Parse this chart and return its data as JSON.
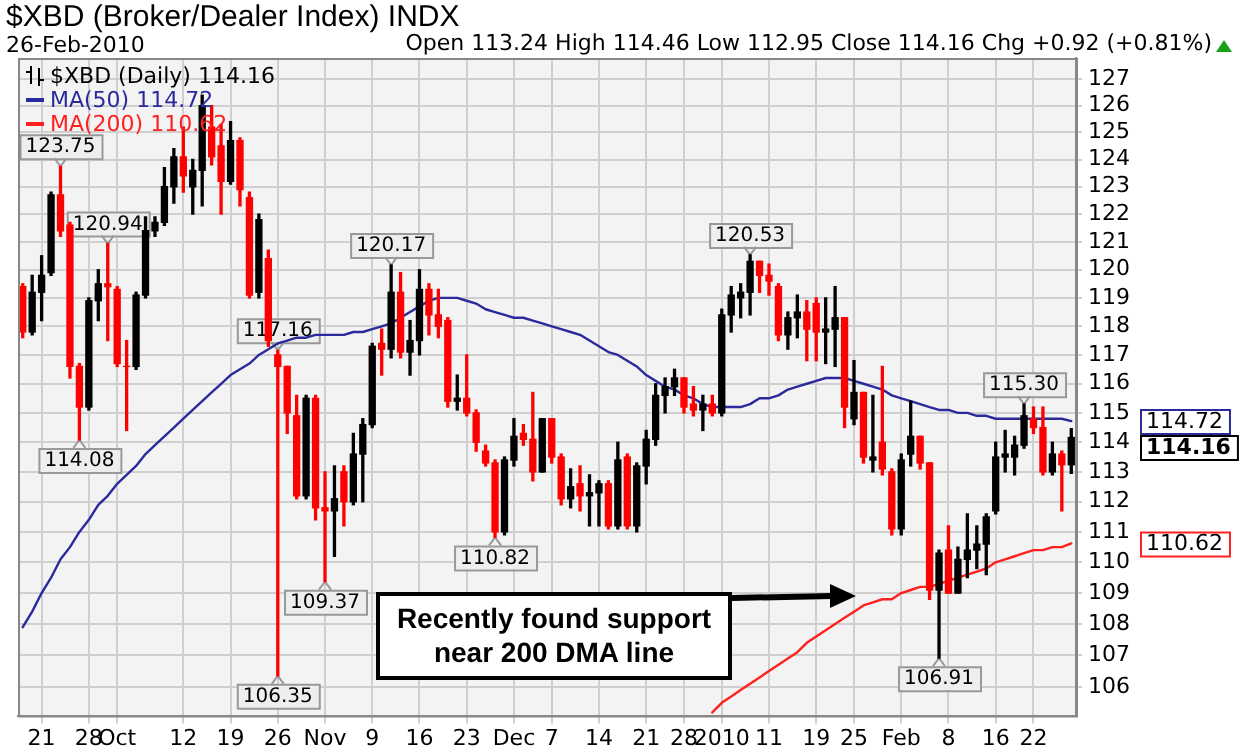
{
  "chart_data": {
    "type": "candlestick",
    "title": "$XBD (Broker/Dealer Index) INDX",
    "subtitle": "26-Feb-2010",
    "categories": [
      null,
      null,
      "21",
      null,
      null,
      null,
      null,
      "28",
      null,
      null,
      "Oct",
      null,
      null,
      null,
      null,
      null,
      null,
      "12",
      null,
      null,
      null,
      null,
      "19",
      null,
      null,
      null,
      null,
      "26",
      null,
      null,
      null,
      null,
      "Nov",
      null,
      null,
      null,
      null,
      "9",
      null,
      null,
      null,
      null,
      "16",
      null,
      null,
      null,
      null,
      "23",
      null,
      null,
      null,
      null,
      "Dec",
      null,
      null,
      null,
      "7",
      null,
      null,
      null,
      null,
      "14",
      null,
      null,
      null,
      null,
      "21",
      null,
      null,
      null,
      "28",
      null,
      null,
      null,
      "2010",
      null,
      null,
      null,
      null,
      "11",
      null,
      null,
      null,
      null,
      "19",
      null,
      null,
      null,
      "25",
      null,
      null,
      null,
      null,
      "Feb",
      null,
      null,
      null,
      null,
      "8",
      null,
      null,
      null,
      null,
      "16",
      null,
      null,
      null,
      "22",
      null,
      null,
      null,
      null
    ],
    "series": [
      {
        "name": "$XBD (Daily) 114.16",
        "ohlc": [
          [
            119.4,
            119.5,
            117.6,
            117.8
          ],
          [
            117.8,
            119.8,
            117.7,
            119.2
          ],
          [
            119.2,
            120.5,
            118.2,
            119.8
          ],
          [
            119.9,
            122.8,
            119.8,
            122.7
          ],
          [
            122.7,
            123.75,
            121.2,
            121.4
          ],
          [
            121.6,
            121.7,
            116.2,
            116.6
          ],
          [
            116.6,
            116.7,
            114.08,
            115.2
          ],
          [
            115.2,
            119.0,
            115.1,
            118.9
          ],
          [
            118.9,
            120.0,
            118.2,
            119.5
          ],
          [
            119.5,
            120.94,
            117.5,
            119.4
          ],
          [
            119.3,
            119.4,
            116.6,
            116.7
          ],
          [
            116.6,
            117.5,
            114.4,
            116.6
          ],
          [
            116.6,
            119.2,
            116.5,
            119.1
          ],
          [
            119.1,
            121.9,
            119.0,
            121.4
          ],
          [
            121.4,
            121.9,
            121.2,
            121.7
          ],
          [
            121.7,
            123.7,
            121.6,
            123.0
          ],
          [
            123.0,
            124.4,
            122.4,
            124.1
          ],
          [
            124.1,
            125.2,
            122.8,
            123.4
          ],
          [
            123.0,
            124.0,
            122.0,
            123.6
          ],
          [
            123.6,
            126.4,
            122.3,
            126.0
          ],
          [
            125.2,
            126.0,
            123.8,
            124.1
          ],
          [
            124.5,
            125.3,
            122.0,
            123.2
          ],
          [
            123.2,
            125.4,
            123.1,
            124.7
          ],
          [
            124.7,
            124.8,
            122.3,
            122.9
          ],
          [
            122.6,
            122.8,
            119.0,
            119.1
          ],
          [
            119.2,
            122.0,
            119.0,
            121.8
          ],
          [
            120.4,
            120.7,
            117.3,
            117.5
          ],
          [
            117.0,
            117.16,
            106.35,
            116.6
          ],
          [
            116.6,
            116.6,
            114.3,
            115.0
          ],
          [
            114.9,
            115.6,
            112.1,
            112.2
          ],
          [
            112.2,
            115.6,
            112.1,
            115.5
          ],
          [
            115.5,
            115.6,
            111.4,
            111.8
          ],
          [
            111.8,
            113.0,
            109.37,
            111.7
          ],
          [
            111.7,
            113.2,
            110.2,
            112.1
          ],
          [
            113.0,
            113.2,
            111.2,
            112.0
          ],
          [
            112.0,
            114.3,
            111.9,
            113.6
          ],
          [
            113.6,
            114.8,
            112.0,
            114.6
          ],
          [
            114.6,
            117.4,
            114.5,
            117.3
          ],
          [
            117.4,
            117.9,
            116.3,
            117.2
          ],
          [
            117.2,
            120.17,
            116.9,
            119.2
          ],
          [
            119.2,
            119.9,
            116.9,
            117.1
          ],
          [
            117.1,
            118.2,
            116.3,
            117.5
          ],
          [
            117.5,
            120.0,
            117.0,
            119.3
          ],
          [
            119.3,
            119.5,
            117.7,
            118.4
          ],
          [
            118.4,
            119.3,
            117.6,
            118.0
          ],
          [
            118.2,
            118.3,
            115.2,
            115.4
          ],
          [
            115.4,
            116.3,
            115.1,
            115.5
          ],
          [
            115.5,
            117.0,
            114.9,
            115.0
          ],
          [
            115.0,
            115.1,
            113.7,
            114.0
          ],
          [
            113.7,
            113.9,
            113.2,
            113.3
          ],
          [
            113.3,
            113.4,
            110.82,
            111.0
          ],
          [
            111.0,
            113.5,
            110.9,
            113.4
          ],
          [
            113.4,
            114.8,
            113.2,
            114.2
          ],
          [
            114.3,
            114.6,
            113.9,
            114.1
          ],
          [
            114.1,
            115.7,
            112.7,
            113.0
          ],
          [
            113.0,
            114.8,
            113.0,
            114.8
          ],
          [
            114.8,
            114.8,
            113.3,
            113.5
          ],
          [
            113.5,
            113.6,
            111.9,
            112.1
          ],
          [
            112.1,
            113.1,
            111.8,
            112.5
          ],
          [
            112.6,
            113.2,
            111.7,
            112.2
          ],
          [
            112.2,
            112.9,
            111.2,
            112.3
          ],
          [
            112.3,
            112.7,
            111.2,
            112.6
          ],
          [
            112.6,
            112.7,
            111.1,
            111.2
          ],
          [
            111.2,
            114.0,
            111.1,
            113.4
          ],
          [
            113.5,
            113.6,
            111.1,
            111.2
          ],
          [
            111.2,
            113.3,
            111.0,
            113.2
          ],
          [
            113.2,
            114.4,
            112.6,
            114.1
          ],
          [
            114.1,
            116.0,
            113.9,
            115.6
          ],
          [
            115.6,
            116.2,
            115.0,
            115.9
          ],
          [
            115.9,
            116.5,
            115.6,
            116.2
          ],
          [
            116.2,
            116.2,
            115.0,
            115.2
          ],
          [
            115.3,
            115.9,
            114.9,
            115.1
          ],
          [
            115.1,
            115.6,
            114.4,
            115.3
          ],
          [
            115.3,
            115.6,
            114.9,
            115.0
          ],
          [
            115.0,
            118.6,
            114.9,
            118.4
          ],
          [
            118.4,
            119.4,
            117.8,
            119.1
          ],
          [
            119.0,
            119.5,
            118.3,
            119.2
          ],
          [
            119.2,
            120.53,
            118.4,
            120.3
          ],
          [
            120.3,
            120.3,
            119.2,
            119.8
          ],
          [
            119.8,
            120.2,
            119.1,
            119.6
          ],
          [
            119.4,
            119.5,
            117.5,
            117.7
          ],
          [
            117.7,
            118.5,
            117.2,
            118.3
          ],
          [
            118.3,
            119.1,
            117.6,
            118.5
          ],
          [
            118.5,
            118.9,
            116.8,
            117.9
          ],
          [
            118.8,
            119.0,
            116.8,
            117.8
          ],
          [
            117.8,
            119.0,
            116.7,
            117.9
          ],
          [
            117.9,
            119.4,
            116.6,
            118.3
          ],
          [
            118.3,
            118.3,
            114.5,
            115.2
          ],
          [
            114.8,
            116.8,
            114.6,
            115.7
          ],
          [
            115.7,
            115.7,
            113.3,
            113.5
          ],
          [
            113.4,
            115.6,
            113.0,
            113.5
          ],
          [
            114.0,
            116.6,
            112.9,
            113.1
          ],
          [
            113.0,
            113.1,
            110.9,
            111.1
          ],
          [
            111.1,
            113.6,
            110.9,
            113.4
          ],
          [
            113.6,
            115.4,
            113.2,
            114.2
          ],
          [
            114.2,
            114.2,
            113.1,
            113.3
          ],
          [
            113.3,
            113.3,
            108.8,
            109.1
          ],
          [
            109.1,
            110.4,
            106.91,
            110.3
          ],
          [
            110.4,
            111.2,
            109.0,
            109.0
          ],
          [
            109.0,
            110.5,
            109.0,
            110.1
          ],
          [
            110.1,
            111.6,
            109.5,
            110.4
          ],
          [
            110.4,
            111.2,
            109.8,
            110.6
          ],
          [
            110.6,
            111.6,
            109.6,
            111.5
          ],
          [
            111.7,
            114.0,
            111.6,
            113.5
          ],
          [
            113.5,
            114.4,
            113.0,
            113.6
          ],
          [
            113.5,
            114.2,
            112.9,
            113.9
          ],
          [
            113.9,
            115.3,
            113.8,
            114.9
          ],
          [
            114.8,
            115.2,
            114.3,
            114.5
          ],
          [
            114.5,
            115.2,
            112.9,
            113.0
          ],
          [
            113.0,
            114.0,
            112.9,
            113.6
          ],
          [
            113.6,
            113.7,
            111.7,
            113.24
          ],
          [
            113.24,
            114.46,
            112.95,
            114.16
          ]
        ],
        "colors": [
          "#ff0000",
          "#000000",
          "#000000",
          "#000000",
          "#ff0000",
          "#ff0000",
          "#ff0000",
          "#000000",
          "#000000",
          "#ff0000",
          "#ff0000",
          "#ff0000",
          "#000000",
          "#000000",
          "#000000",
          "#000000",
          "#000000",
          "#ff0000",
          "#000000",
          "#000000",
          "#ff0000",
          "#ff0000",
          "#000000",
          "#ff0000",
          "#ff0000",
          "#000000",
          "#ff0000",
          "#ff0000",
          "#ff0000",
          "#ff0000",
          "#000000",
          "#ff0000",
          "#ff0000",
          "#000000",
          "#ff0000",
          "#000000",
          "#000000",
          "#000000",
          "#ff0000",
          "#000000",
          "#ff0000",
          "#000000",
          "#000000",
          "#ff0000",
          "#ff0000",
          "#ff0000",
          "#000000",
          "#ff0000",
          "#ff0000",
          "#ff0000",
          "#ff0000",
          "#000000",
          "#000000",
          "#ff0000",
          "#ff0000",
          "#000000",
          "#ff0000",
          "#ff0000",
          "#000000",
          "#ff0000",
          "#000000",
          "#000000",
          "#ff0000",
          "#000000",
          "#ff0000",
          "#000000",
          "#000000",
          "#000000",
          "#000000",
          "#000000",
          "#ff0000",
          "#ff0000",
          "#000000",
          "#ff0000",
          "#000000",
          "#000000",
          "#000000",
          "#000000",
          "#ff0000",
          "#ff0000",
          "#ff0000",
          "#000000",
          "#000000",
          "#ff0000",
          "#ff0000",
          "#000000",
          "#000000",
          "#ff0000",
          "#000000",
          "#ff0000",
          "#000000",
          "#ff0000",
          "#ff0000",
          "#000000",
          "#000000",
          "#ff0000",
          "#ff0000",
          "#000000",
          "#ff0000",
          "#000000",
          "#000000",
          "#000000",
          "#000000",
          "#000000",
          "#000000",
          "#000000",
          "#000000",
          "#ff0000",
          "#ff0000",
          "#000000",
          "#ff0000",
          "#000000"
        ]
      },
      {
        "type": "line",
        "name": "MA(50) 114.72",
        "color": "#2a2a9c",
        "values": [
          107.9,
          108.4,
          109.0,
          109.5,
          110.1,
          110.5,
          111.0,
          111.4,
          111.9,
          112.2,
          112.6,
          112.9,
          113.2,
          113.6,
          113.9,
          114.2,
          114.5,
          114.8,
          115.1,
          115.4,
          115.7,
          116.0,
          116.3,
          116.5,
          116.7,
          117.0,
          117.2,
          117.4,
          117.5,
          117.6,
          117.6,
          117.7,
          117.7,
          117.7,
          117.7,
          117.8,
          117.8,
          117.9,
          118.0,
          118.1,
          118.3,
          118.5,
          118.7,
          118.9,
          119.0,
          119.0,
          119.0,
          118.9,
          118.8,
          118.6,
          118.5,
          118.4,
          118.3,
          118.3,
          118.2,
          118.1,
          118.0,
          117.9,
          117.8,
          117.7,
          117.5,
          117.3,
          117.1,
          117.0,
          116.8,
          116.6,
          116.3,
          116.1,
          115.9,
          115.8,
          115.6,
          115.5,
          115.3,
          115.2,
          115.2,
          115.2,
          115.2,
          115.3,
          115.5,
          115.5,
          115.6,
          115.8,
          115.9,
          116.0,
          116.1,
          116.2,
          116.2,
          116.2,
          116.1,
          116.0,
          115.9,
          115.8,
          115.6,
          115.5,
          115.4,
          115.3,
          115.2,
          115.1,
          115.1,
          115.0,
          115.0,
          114.9,
          114.9,
          114.8,
          114.8,
          114.8,
          114.8,
          114.8,
          114.8,
          114.8,
          114.8,
          114.72
        ]
      },
      {
        "type": "line",
        "name": "MA(200) 110.62",
        "color": "#ff2020",
        "values": [
          null,
          null,
          null,
          null,
          null,
          null,
          null,
          null,
          null,
          null,
          null,
          null,
          null,
          null,
          null,
          null,
          null,
          null,
          null,
          null,
          null,
          null,
          null,
          null,
          null,
          null,
          null,
          null,
          null,
          null,
          null,
          null,
          null,
          null,
          null,
          null,
          null,
          null,
          null,
          null,
          null,
          null,
          null,
          null,
          null,
          null,
          null,
          null,
          null,
          null,
          null,
          null,
          null,
          null,
          null,
          null,
          null,
          null,
          null,
          null,
          null,
          null,
          null,
          null,
          null,
          null,
          null,
          null,
          null,
          null,
          null,
          null,
          null,
          105.2,
          105.5,
          105.7,
          105.9,
          106.1,
          106.3,
          106.5,
          106.7,
          106.9,
          107.1,
          107.4,
          107.6,
          107.8,
          108.0,
          108.2,
          108.4,
          108.6,
          108.7,
          108.8,
          108.8,
          109.0,
          109.1,
          109.2,
          109.2,
          109.3,
          109.4,
          109.5,
          109.6,
          109.7,
          109.8,
          110.0,
          110.1,
          110.2,
          110.3,
          110.4,
          110.4,
          110.5,
          110.5,
          110.62
        ]
      }
    ],
    "ylim": [
      105.1,
      127.8
    ],
    "yticks": [
      106,
      107,
      108,
      109,
      110,
      111,
      112,
      113,
      114,
      115,
      116,
      117,
      118,
      119,
      120,
      121,
      122,
      123,
      124,
      125,
      126,
      127
    ],
    "log": true,
    "grid": true,
    "legend": "top left",
    "marker": "none",
    "annotations": [
      "Open 113.24 High 114.46 Low 112.95 Close 114.16 Chg +0.92 (+0.81%)",
      "Recently found support near 200 DMA line",
      {
        "text": "123.75",
        "y": 123.75
      },
      {
        "text": "120.94",
        "y": 120.94
      },
      {
        "text": "114.08",
        "y": 114.08
      },
      {
        "text": "117.16",
        "y": 117.16
      },
      {
        "text": "106.35",
        "y": 106.35
      },
      {
        "text": "109.37",
        "y": 109.37
      },
      {
        "text": "120.17",
        "y": 120.17
      },
      {
        "text": "110.82",
        "y": 110.82
      },
      {
        "text": "120.53",
        "y": 120.53
      },
      {
        "text": "115.30",
        "y": 115.3
      },
      {
        "text": "106.91",
        "y": 106.91
      },
      "114.16",
      "114.72",
      "110.62"
    ]
  }
}
